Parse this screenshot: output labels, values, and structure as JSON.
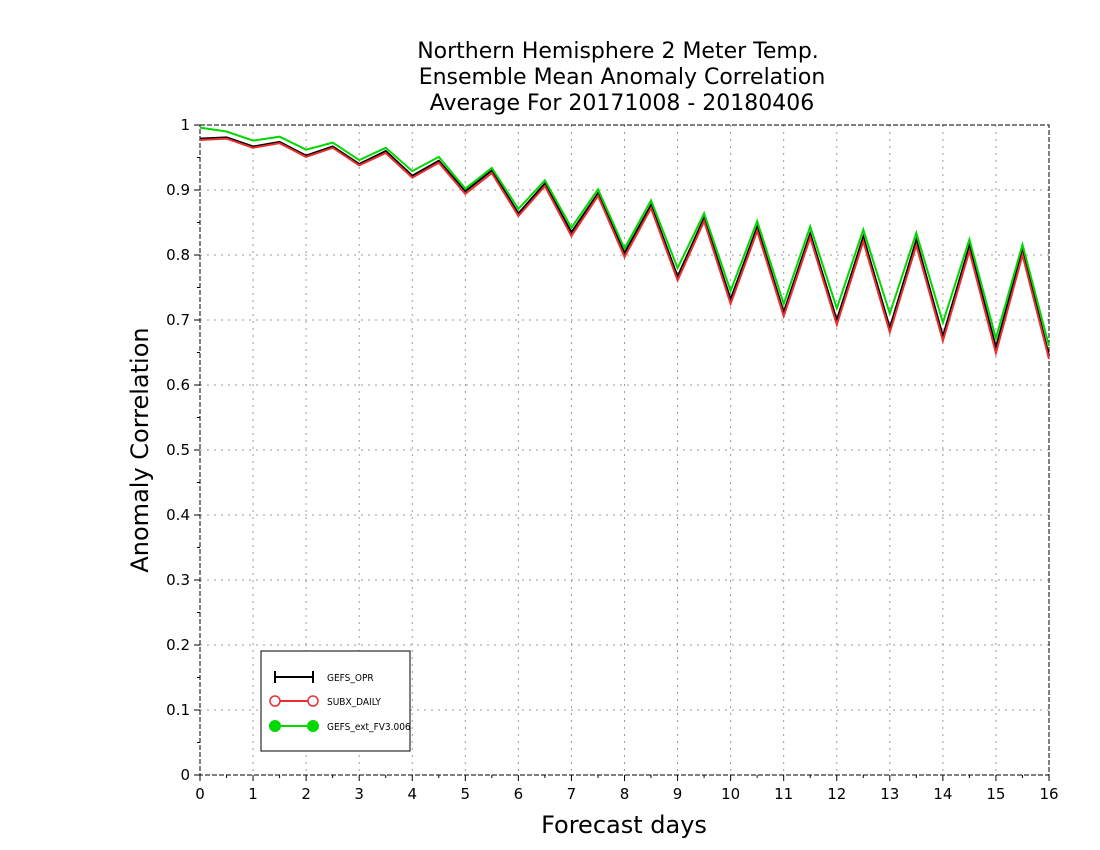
{
  "chart_data": {
    "type": "line",
    "title": [
      "Northern Hemisphere 2 Meter Temp.",
      "Ensemble Mean Anomaly Correlation",
      "Average For 20171008 - 20180406"
    ],
    "xlabel": "Forecast days",
    "ylabel": "Anomaly Correlation",
    "xlim": [
      0,
      16
    ],
    "ylim": [
      0,
      1
    ],
    "x_ticks": [
      0,
      1,
      2,
      3,
      4,
      5,
      6,
      7,
      8,
      9,
      10,
      11,
      12,
      13,
      14,
      15,
      16
    ],
    "y_ticks": [
      0,
      0.1,
      0.2,
      0.3,
      0.4,
      0.5,
      0.6,
      0.7,
      0.8,
      0.9,
      1
    ],
    "y_tick_labels": [
      "0",
      "0.1",
      "0.2",
      "0.3",
      "0.4",
      "0.5",
      "0.6",
      "0.7",
      "0.8",
      "0.9",
      "1"
    ],
    "grid": true,
    "legend_position": "bottom-left",
    "x": [
      0,
      0.5,
      1,
      1.5,
      2,
      2.5,
      3,
      3.5,
      4,
      4.5,
      5,
      5.5,
      6,
      6.5,
      7,
      7.5,
      8,
      8.5,
      9,
      9.5,
      10,
      10.5,
      11,
      11.5,
      12,
      12.5,
      13,
      13.5,
      14,
      14.5,
      15,
      15.5,
      16
    ],
    "series": [
      {
        "name": "GEFS_OPR",
        "color": "#000000",
        "marker": "plus",
        "values": [
          0.979,
          0.981,
          0.967,
          0.974,
          0.953,
          0.967,
          0.94,
          0.96,
          0.922,
          0.945,
          0.898,
          0.93,
          0.864,
          0.91,
          0.835,
          0.895,
          0.803,
          0.877,
          0.767,
          0.857,
          0.732,
          0.843,
          0.712,
          0.833,
          0.7,
          0.828,
          0.688,
          0.823,
          0.675,
          0.814,
          0.658,
          0.808,
          0.645
        ]
      },
      {
        "name": "SUBX_DAILY",
        "color": "#e83030",
        "marker": "open-circle",
        "values": [
          0.977,
          0.979,
          0.965,
          0.972,
          0.951,
          0.965,
          0.938,
          0.957,
          0.919,
          0.942,
          0.894,
          0.926,
          0.86,
          0.906,
          0.829,
          0.891,
          0.797,
          0.872,
          0.761,
          0.852,
          0.725,
          0.837,
          0.706,
          0.827,
          0.693,
          0.821,
          0.681,
          0.815,
          0.668,
          0.806,
          0.649,
          0.8,
          0.64
        ]
      },
      {
        "name": "GEFS_ext_FV3.006",
        "color": "#00d800",
        "marker": "filled-circle",
        "values": [
          0.996,
          0.99,
          0.976,
          0.982,
          0.962,
          0.973,
          0.946,
          0.965,
          0.929,
          0.951,
          0.902,
          0.934,
          0.871,
          0.915,
          0.842,
          0.901,
          0.81,
          0.884,
          0.78,
          0.864,
          0.745,
          0.852,
          0.725,
          0.844,
          0.718,
          0.839,
          0.71,
          0.834,
          0.696,
          0.824,
          0.672,
          0.816,
          0.66
        ]
      }
    ]
  }
}
